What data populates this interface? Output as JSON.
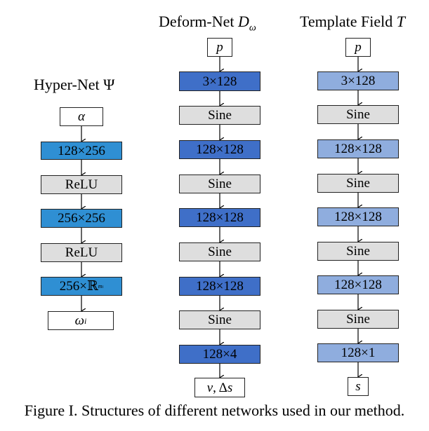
{
  "titles": {
    "hyper": {
      "text": "Hyper-Net ",
      "symbol": "Ψ"
    },
    "deform": {
      "text": "Deform-Net ",
      "symbol": "D",
      "sub": "ω"
    },
    "template": {
      "text": "Template Field ",
      "symbol": "T"
    }
  },
  "hyper_net": {
    "input": "α",
    "layer1": "128×256",
    "act1": "ReLU",
    "layer2": "256×256",
    "act2": "ReLU",
    "layer3": "256×",
    "layer3_space": "ℝ",
    "layer3_exp": "m",
    "layer3_exp_sub": "i",
    "output": "ω",
    "output_sub": "i"
  },
  "deform_net": {
    "input": "p",
    "layer1": "3×128",
    "act1": "Sine",
    "layer2": "128×128",
    "act2": "Sine",
    "layer3": "128×128",
    "act3": "Sine",
    "layer4": "128×128",
    "act4": "Sine",
    "layer5": "128×4",
    "output_v": "v",
    "output_rest": ", Δ",
    "output_s": "s"
  },
  "template_field": {
    "input": "p",
    "layer1": "3×128",
    "act1": "Sine",
    "layer2": "128×128",
    "act2": "Sine",
    "layer3": "128×128",
    "act3": "Sine",
    "layer4": "128×128",
    "act4": "Sine",
    "layer5": "128×1",
    "output": "s"
  },
  "caption": "Figure I. Structures of different networks used in our method.",
  "colors": {
    "hyper_layer": "#2f8fd3",
    "deform_layer": "#3f6fc8",
    "template_layer": "#8fadde",
    "activation": "#dedede"
  }
}
